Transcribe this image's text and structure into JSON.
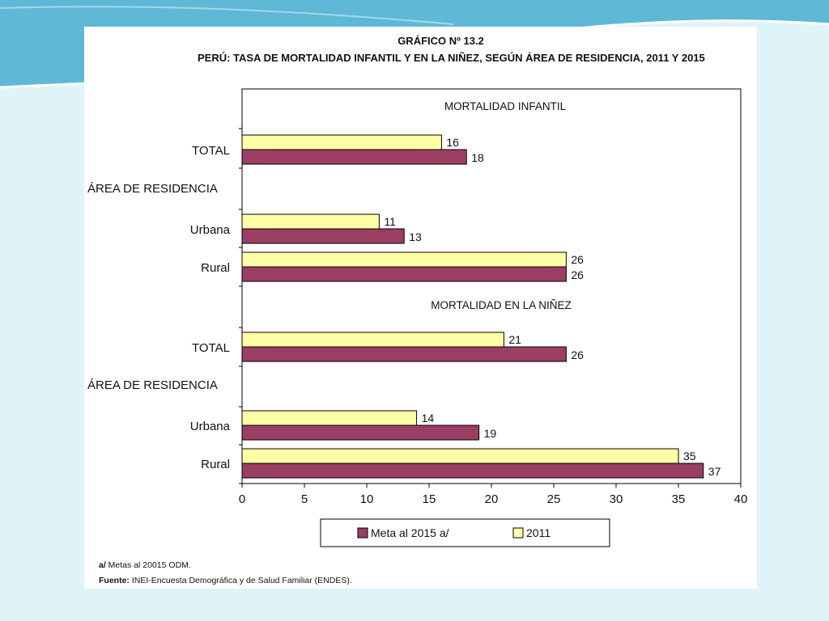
{
  "title": "GRÁFICO Nº 13.2",
  "subtitle": "PERÚ: TASA DE MORTALIDAD INFANTIL Y EN LA NIÑEZ, SEGÚN ÁREA DE RESIDENCIA, 2011 Y 2015",
  "chart_data": {
    "type": "bar",
    "orientation": "horizontal",
    "xlim": [
      0,
      40
    ],
    "xticks": [
      "0",
      "5",
      "10",
      "15",
      "20",
      "25",
      "30",
      "35",
      "40"
    ],
    "grid": false,
    "legend_position": "bottom",
    "series": [
      {
        "name": "Meta al 2015 a/",
        "color": "#9b3e64"
      },
      {
        "name": "2011",
        "color": "#ffffa6"
      }
    ],
    "sections": [
      {
        "label": "MORTALIDAD INFANTIL"
      },
      {
        "label": "MORTALIDAD EN LA NIÑEZ"
      }
    ],
    "group_label": "ÁREA DE RESIDENCIA",
    "rows": [
      {
        "section": 0,
        "category": "TOTAL",
        "y2011": 16,
        "meta2015": 18
      },
      {
        "section": 0,
        "category": "Urbana",
        "y2011": 11,
        "meta2015": 13
      },
      {
        "section": 0,
        "category": "Rural",
        "y2011": 26,
        "meta2015": 26
      },
      {
        "section": 1,
        "category": "TOTAL",
        "y2011": 21,
        "meta2015": 26
      },
      {
        "section": 1,
        "category": "Urbana",
        "y2011": 14,
        "meta2015": 19
      },
      {
        "section": 1,
        "category": "Rural",
        "y2011": 35,
        "meta2015": 37
      }
    ]
  },
  "footnote": {
    "marker": "a/",
    "text": " Metas al 20015 ODM."
  },
  "source": {
    "label": "Fuente:",
    "text": " INEI-Encuesta Demográfica y de Salud Familiar (ENDES)."
  }
}
